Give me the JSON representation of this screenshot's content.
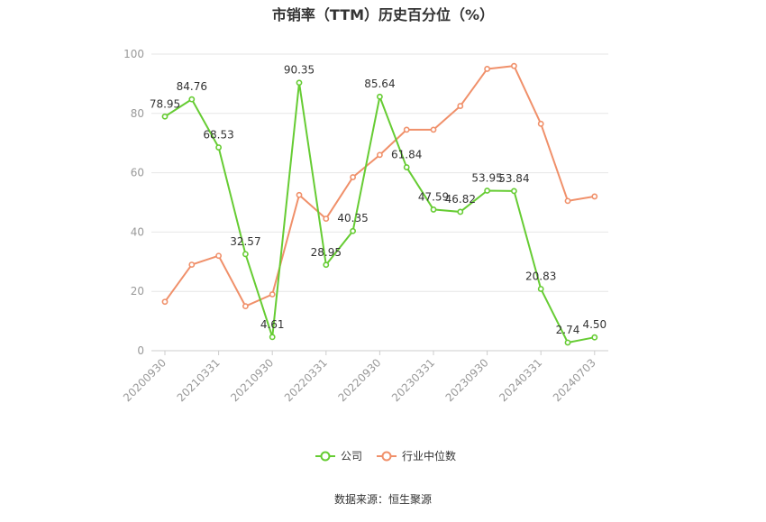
{
  "chart_data": {
    "type": "line",
    "title": "市销率（TTM）历史百分位（%）",
    "source": "数据来源：恒生聚源",
    "ylim": [
      0,
      100
    ],
    "yticks": [
      0,
      20,
      40,
      60,
      80,
      100
    ],
    "xtick_labels": [
      "20200930",
      "20210331",
      "20210930",
      "20220331",
      "20220930",
      "20230331",
      "20230930",
      "20240331",
      "20240703"
    ],
    "x": [
      "20200930",
      "20201231",
      "20210331",
      "20210630",
      "20210930",
      "20211231",
      "20220331",
      "20220630",
      "20220930",
      "20221231",
      "20230331",
      "20230630",
      "20230930",
      "20231231",
      "20240331",
      "20240630",
      "20240703"
    ],
    "grid": true,
    "legend_position": "bottom",
    "series": [
      {
        "name": "公司",
        "color": "#66cc33",
        "values": [
          78.95,
          84.76,
          68.53,
          32.57,
          4.61,
          90.35,
          28.95,
          40.35,
          85.64,
          61.84,
          47.59,
          46.82,
          53.95,
          53.84,
          20.83,
          2.74,
          4.5
        ],
        "labels": [
          "78.95",
          "84.76",
          "68.53",
          "32.57",
          "4.61",
          "90.35",
          "28.95",
          "40.35",
          "85.64",
          "61.84",
          "47.59",
          "46.82",
          "53.95",
          "53.84",
          "20.83",
          "2.74",
          "4.50"
        ]
      },
      {
        "name": "行业中位数",
        "color": "#f0906a",
        "values": [
          16.5,
          29,
          32,
          15,
          19,
          52.5,
          44.5,
          58.5,
          66,
          74.5,
          74.5,
          82.5,
          95,
          96,
          76.5,
          50.5,
          52
        ]
      }
    ]
  }
}
